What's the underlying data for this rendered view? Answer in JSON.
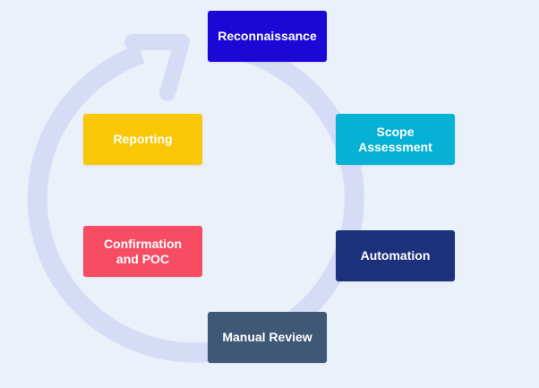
{
  "diagram": {
    "ring_color": "#d7dcf6",
    "stages": [
      {
        "key": "reconnaissance",
        "label": "Reconnaissance",
        "color": "#1c08d6"
      },
      {
        "key": "scope",
        "label": "Scope\nAssessment",
        "color": "#06b1d6"
      },
      {
        "key": "automation",
        "label": "Automation",
        "color": "#1c307c"
      },
      {
        "key": "manual",
        "label": "Manual Review",
        "color": "#3e5875"
      },
      {
        "key": "confirmation",
        "label": "Confirmation\nand POC",
        "color": "#f64c64"
      },
      {
        "key": "reporting",
        "label": "Reporting",
        "color": "#fac706"
      }
    ]
  }
}
